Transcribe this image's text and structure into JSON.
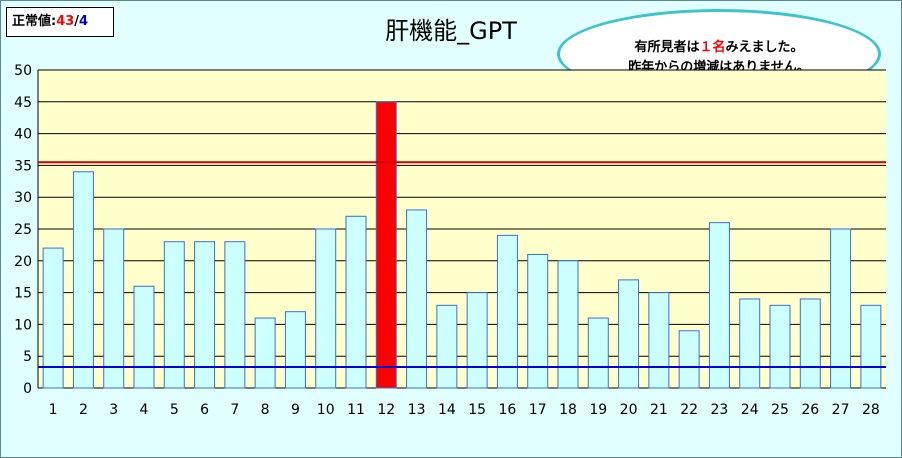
{
  "normal_value": {
    "label": "正常値:",
    "upper": "43",
    "separator": "/",
    "lower": "4"
  },
  "comment": {
    "line1_prefix": "有所見者は",
    "line1_count": "１名",
    "line1_suffix": "みえました。",
    "line2": "昨年からの増減はありません。"
  },
  "colors": {
    "bar": "#ccffff",
    "bar_highlight": "#ff0000",
    "bar_stroke": "#3a6fd8",
    "plot_bg": "#ffffcc",
    "upper_line": "#cc0000",
    "lower_line": "#0000dd",
    "background": "#e1ffff"
  },
  "chart_data": {
    "type": "bar",
    "title": "肝機能_GPT",
    "categories": [
      "1",
      "2",
      "3",
      "4",
      "5",
      "6",
      "7",
      "8",
      "9",
      "10",
      "11",
      "12",
      "13",
      "14",
      "15",
      "16",
      "17",
      "18",
      "19",
      "20",
      "21",
      "22",
      "23",
      "24",
      "25",
      "26",
      "27",
      "28"
    ],
    "values": [
      22,
      34,
      25,
      16,
      23,
      23,
      23,
      11,
      12,
      25,
      27,
      45,
      28,
      13,
      15,
      24,
      21,
      20,
      11,
      17,
      15,
      9,
      26,
      14,
      13,
      14,
      25,
      13
    ],
    "highlight_categories": [
      "12"
    ],
    "ylim": [
      0,
      50
    ],
    "yticks": [
      0,
      5,
      10,
      15,
      20,
      25,
      30,
      35,
      40,
      45,
      50
    ],
    "reference_lines": {
      "upper": 35.5,
      "lower": 3.3
    },
    "grid": true
  }
}
